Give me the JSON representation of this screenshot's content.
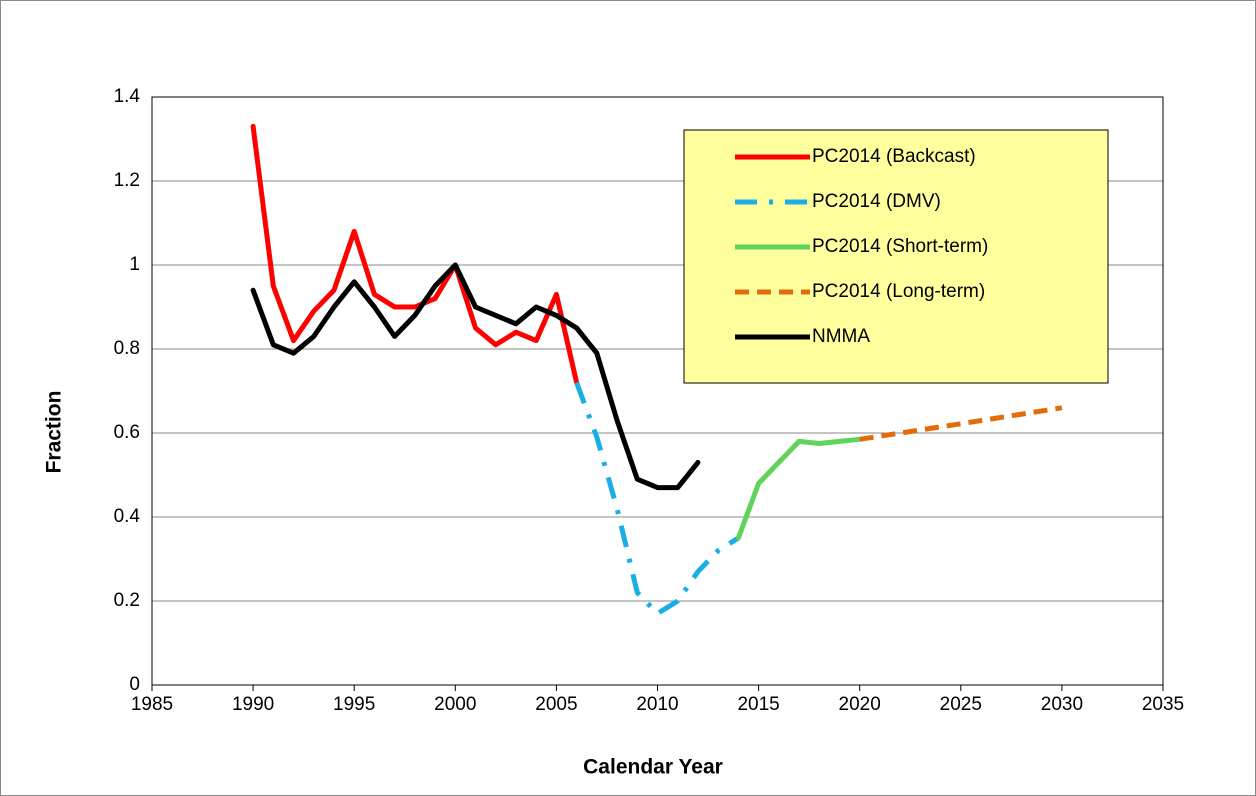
{
  "chart_data": {
    "type": "line",
    "x_label": "Calendar Year",
    "y_label": "Fraction",
    "xlim": [
      1985,
      2035
    ],
    "xticks": [
      1985,
      1990,
      1995,
      2000,
      2005,
      2010,
      2015,
      2020,
      2025,
      2030,
      2035
    ],
    "ylim": [
      0,
      1.4
    ],
    "yticks": [
      0,
      0.2,
      0.4,
      0.6,
      0.8,
      1,
      1.2,
      1.4
    ],
    "grid": true,
    "legend": "upper right",
    "series": [
      {
        "name": "PC2014 (Backcast)",
        "color": "#ff0000",
        "dash": "solid",
        "x": [
          1990,
          1991,
          1992,
          1993,
          1994,
          1995,
          1996,
          1997,
          1998,
          1999,
          2000,
          2001,
          2002,
          2003,
          2004,
          2005,
          2006
        ],
        "values": [
          1.33,
          0.95,
          0.82,
          0.89,
          0.94,
          1.08,
          0.93,
          0.9,
          0.9,
          0.92,
          1.0,
          0.85,
          0.81,
          0.84,
          0.82,
          0.93,
          0.72
        ]
      },
      {
        "name": "PC2014 (DMV)",
        "color": "#19aee8",
        "dash": "dashdot",
        "x": [
          2006,
          2007,
          2008,
          2009,
          2010,
          2011,
          2012,
          2013,
          2014
        ],
        "values": [
          0.72,
          0.59,
          0.42,
          0.22,
          0.17,
          0.2,
          0.27,
          0.32,
          0.35
        ]
      },
      {
        "name": "PC2014 (Short-term)",
        "color": "#5fd35a",
        "dash": "solid",
        "x": [
          2014,
          2015,
          2016,
          2017,
          2018,
          2019,
          2020
        ],
        "values": [
          0.35,
          0.48,
          0.53,
          0.58,
          0.575,
          0.58,
          0.585
        ]
      },
      {
        "name": "PC2014 (Long-term)",
        "color": "#e36c0a",
        "dash": "dashed",
        "x": [
          2020,
          2025,
          2030
        ],
        "values": [
          0.585,
          0.622,
          0.66
        ]
      },
      {
        "name": "NMMA",
        "color": "#000000",
        "dash": "solid",
        "x": [
          1990,
          1991,
          1992,
          1993,
          1994,
          1995,
          1996,
          1997,
          1998,
          1999,
          2000,
          2001,
          2002,
          2003,
          2004,
          2005,
          2006,
          2007,
          2008,
          2009,
          2010,
          2011,
          2012
        ],
        "values": [
          0.94,
          0.81,
          0.79,
          0.83,
          0.9,
          0.96,
          0.9,
          0.83,
          0.88,
          0.95,
          1.0,
          0.9,
          0.88,
          0.86,
          0.9,
          0.88,
          0.85,
          0.79,
          0.63,
          0.49,
          0.47,
          0.47,
          0.53
        ]
      }
    ]
  }
}
